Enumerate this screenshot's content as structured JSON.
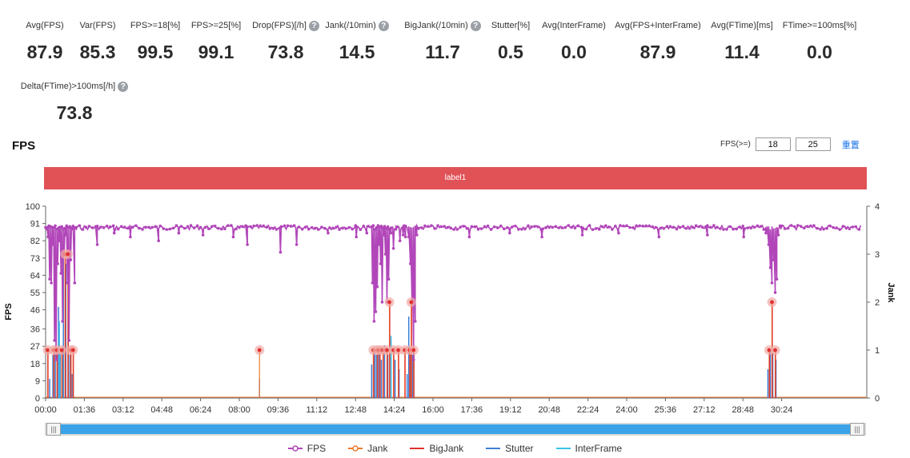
{
  "stats": [
    {
      "label": "Avg(FPS)",
      "value": "87.9",
      "help": false
    },
    {
      "label": "Var(FPS)",
      "value": "85.3",
      "help": false
    },
    {
      "label": "FPS>=18[%]",
      "value": "99.5",
      "help": false
    },
    {
      "label": "FPS>=25[%]",
      "value": "99.1",
      "help": false
    },
    {
      "label": "Drop(FPS)[/h]",
      "value": "73.8",
      "help": true
    },
    {
      "label": "Jank(/10min)",
      "value": "14.5",
      "help": true
    },
    {
      "label": "BigJank(/10min)",
      "value": "11.7",
      "help": true
    },
    {
      "label": "Stutter[%]",
      "value": "0.5",
      "help": false
    },
    {
      "label": "Avg(InterFrame)",
      "value": "0.0",
      "help": false
    },
    {
      "label": "Avg(FPS+InterFrame)",
      "value": "87.9",
      "help": false
    },
    {
      "label": "Avg(FTime)[ms]",
      "value": "11.4",
      "help": false
    },
    {
      "label": "FTime>=100ms[%]",
      "value": "0.0",
      "help": false
    },
    {
      "label": "Delta(FTime)>100ms[/h]",
      "value": "73.8",
      "help": true
    }
  ],
  "help_glyph": "?",
  "section_title": "FPS",
  "fps_filter": {
    "label": "FPS(>=)",
    "low": "18",
    "high": "25",
    "reset": "重置"
  },
  "label_bar": "label1",
  "slider": {
    "left_glyph": "|||",
    "right_glyph": "|||",
    "start": 0.0,
    "end": 1.0
  },
  "colors": {
    "fps": "#b146b9",
    "jank": "#f07a2e",
    "bigjank": "#e0302f",
    "stutter": "#3e7fd6",
    "interframe": "#36c3e8",
    "label_bar": "#e05256",
    "halo": "#f1a9a4"
  },
  "legend": [
    {
      "name": "FPS",
      "key": "fps",
      "marker": "dot-line"
    },
    {
      "name": "Jank",
      "key": "jank",
      "marker": "dot-line"
    },
    {
      "name": "BigJank",
      "key": "bigjank",
      "marker": "line"
    },
    {
      "name": "Stutter",
      "key": "stutter",
      "marker": "line"
    },
    {
      "name": "InterFrame",
      "key": "interframe",
      "marker": "line"
    }
  ],
  "chart_data": {
    "type": "line",
    "title": "FPS",
    "xlabel": "",
    "ylabel": "FPS",
    "y2label": "Jank",
    "x_unit": "minutes",
    "xlim": [
      0,
      2035
    ],
    "ylim": [
      0,
      100
    ],
    "y2lim": [
      0,
      4
    ],
    "y_ticks": [
      0,
      9,
      18,
      27,
      36,
      46,
      55,
      64,
      73,
      82,
      91,
      100
    ],
    "y2_ticks": [
      0,
      1,
      2,
      3,
      4
    ],
    "x_tick_values": [
      0,
      96,
      192,
      288,
      384,
      480,
      576,
      672,
      768,
      864,
      960,
      1056,
      1152,
      1248,
      1344,
      1440,
      1536,
      1632,
      1728,
      1824
    ],
    "x_tick_labels": [
      "00:00",
      "01:36",
      "03:12",
      "04:48",
      "06:24",
      "08:00",
      "09:36",
      "11:12",
      "12:48",
      "14:24",
      "16:00",
      "17:36",
      "19:12",
      "20:48",
      "22:24",
      "24:00",
      "25:36",
      "27:12",
      "28:48",
      "30:24"
    ],
    "fps_baseline": 90,
    "series": [
      {
        "name": "FPS",
        "key": "fps",
        "axis": "left",
        "description": "steady near 90 with dropouts",
        "dips": [
          {
            "x": 2,
            "y": 88
          },
          {
            "x": 6,
            "y": 84
          },
          {
            "x": 10,
            "y": 62
          },
          {
            "x": 14,
            "y": 60
          },
          {
            "x": 18,
            "y": 80
          },
          {
            "x": 22,
            "y": 30
          },
          {
            "x": 26,
            "y": 20
          },
          {
            "x": 30,
            "y": 70
          },
          {
            "x": 34,
            "y": 82
          },
          {
            "x": 38,
            "y": 65
          },
          {
            "x": 42,
            "y": 40
          },
          {
            "x": 46,
            "y": 75
          },
          {
            "x": 50,
            "y": 85
          },
          {
            "x": 54,
            "y": 60
          },
          {
            "x": 58,
            "y": 30
          },
          {
            "x": 62,
            "y": 72
          },
          {
            "x": 66,
            "y": 88
          },
          {
            "x": 72,
            "y": 60
          },
          {
            "x": 76,
            "y": 88
          },
          {
            "x": 128,
            "y": 80
          },
          {
            "x": 170,
            "y": 86
          },
          {
            "x": 210,
            "y": 84
          },
          {
            "x": 280,
            "y": 82
          },
          {
            "x": 330,
            "y": 86
          },
          {
            "x": 390,
            "y": 85
          },
          {
            "x": 465,
            "y": 84
          },
          {
            "x": 500,
            "y": 80
          },
          {
            "x": 582,
            "y": 76
          },
          {
            "x": 622,
            "y": 80
          },
          {
            "x": 700,
            "y": 86
          },
          {
            "x": 770,
            "y": 84
          },
          {
            "x": 796,
            "y": 86
          },
          {
            "x": 810,
            "y": 60
          },
          {
            "x": 814,
            "y": 40
          },
          {
            "x": 818,
            "y": 45
          },
          {
            "x": 822,
            "y": 58
          },
          {
            "x": 826,
            "y": 80
          },
          {
            "x": 830,
            "y": 70
          },
          {
            "x": 834,
            "y": 50
          },
          {
            "x": 838,
            "y": 85
          },
          {
            "x": 842,
            "y": 75
          },
          {
            "x": 846,
            "y": 50
          },
          {
            "x": 850,
            "y": 62
          },
          {
            "x": 856,
            "y": 86
          },
          {
            "x": 862,
            "y": 78
          },
          {
            "x": 868,
            "y": 88
          },
          {
            "x": 878,
            "y": 82
          },
          {
            "x": 886,
            "y": 85
          },
          {
            "x": 892,
            "y": 84
          },
          {
            "x": 900,
            "y": 84
          },
          {
            "x": 904,
            "y": 70
          },
          {
            "x": 908,
            "y": 50
          },
          {
            "x": 912,
            "y": 20
          },
          {
            "x": 916,
            "y": 40
          },
          {
            "x": 920,
            "y": 85
          },
          {
            "x": 1050,
            "y": 84
          },
          {
            "x": 1150,
            "y": 86
          },
          {
            "x": 1230,
            "y": 84
          },
          {
            "x": 1330,
            "y": 85
          },
          {
            "x": 1420,
            "y": 86
          },
          {
            "x": 1520,
            "y": 84
          },
          {
            "x": 1640,
            "y": 85
          },
          {
            "x": 1730,
            "y": 84
          },
          {
            "x": 1785,
            "y": 86
          },
          {
            "x": 1792,
            "y": 80
          },
          {
            "x": 1796,
            "y": 68
          },
          {
            "x": 1800,
            "y": 60
          },
          {
            "x": 1804,
            "y": 72
          },
          {
            "x": 1808,
            "y": 55
          },
          {
            "x": 1812,
            "y": 62
          },
          {
            "x": 1816,
            "y": 85
          },
          {
            "x": 1822,
            "y": 88
          }
        ]
      },
      {
        "name": "Jank",
        "key": "jank",
        "axis": "right",
        "points": [
          {
            "x": 5,
            "y": 1
          },
          {
            "x": 20,
            "y": 1
          },
          {
            "x": 28,
            "y": 1
          },
          {
            "x": 40,
            "y": 1
          },
          {
            "x": 48,
            "y": 3
          },
          {
            "x": 55,
            "y": 3
          },
          {
            "x": 62,
            "y": 1
          },
          {
            "x": 68,
            "y": 1
          },
          {
            "x": 530,
            "y": 1
          },
          {
            "x": 812,
            "y": 1
          },
          {
            "x": 822,
            "y": 1
          },
          {
            "x": 828,
            "y": 1
          },
          {
            "x": 836,
            "y": 1
          },
          {
            "x": 846,
            "y": 1
          },
          {
            "x": 852,
            "y": 2
          },
          {
            "x": 862,
            "y": 1
          },
          {
            "x": 874,
            "y": 1
          },
          {
            "x": 890,
            "y": 1
          },
          {
            "x": 902,
            "y": 1
          },
          {
            "x": 906,
            "y": 2
          },
          {
            "x": 912,
            "y": 1
          },
          {
            "x": 1793,
            "y": 1
          },
          {
            "x": 1800,
            "y": 2
          },
          {
            "x": 1808,
            "y": 1
          }
        ]
      },
      {
        "name": "BigJank",
        "key": "bigjank",
        "axis": "right",
        "points": [
          {
            "x": 5,
            "y": 1
          },
          {
            "x": 20,
            "y": 1
          },
          {
            "x": 28,
            "y": 1
          },
          {
            "x": 40,
            "y": 1
          },
          {
            "x": 48,
            "y": 3
          },
          {
            "x": 55,
            "y": 3
          },
          {
            "x": 62,
            "y": 1
          },
          {
            "x": 68,
            "y": 1
          },
          {
            "x": 812,
            "y": 1
          },
          {
            "x": 822,
            "y": 1
          },
          {
            "x": 828,
            "y": 1
          },
          {
            "x": 836,
            "y": 1
          },
          {
            "x": 846,
            "y": 1
          },
          {
            "x": 852,
            "y": 2
          },
          {
            "x": 862,
            "y": 1
          },
          {
            "x": 874,
            "y": 1
          },
          {
            "x": 890,
            "y": 1
          },
          {
            "x": 902,
            "y": 1
          },
          {
            "x": 906,
            "y": 2
          },
          {
            "x": 912,
            "y": 1
          },
          {
            "x": 1793,
            "y": 1
          },
          {
            "x": 1800,
            "y": 2
          },
          {
            "x": 1808,
            "y": 1
          }
        ]
      },
      {
        "name": "Stutter",
        "key": "stutter",
        "axis": "right",
        "points": [
          {
            "x": 10,
            "y": 0.4
          },
          {
            "x": 18,
            "y": 0.9
          },
          {
            "x": 24,
            "y": 1.1
          },
          {
            "x": 32,
            "y": 1.9
          },
          {
            "x": 36,
            "y": 1.0
          },
          {
            "x": 44,
            "y": 3.0
          },
          {
            "x": 50,
            "y": 2.8
          },
          {
            "x": 56,
            "y": 1.8
          },
          {
            "x": 60,
            "y": 0.9
          },
          {
            "x": 66,
            "y": 0.5
          },
          {
            "x": 530,
            "y": 0.4
          },
          {
            "x": 808,
            "y": 0.7
          },
          {
            "x": 816,
            "y": 1.0
          },
          {
            "x": 820,
            "y": 0.9
          },
          {
            "x": 826,
            "y": 1.0
          },
          {
            "x": 832,
            "y": 0.8
          },
          {
            "x": 840,
            "y": 1.1
          },
          {
            "x": 848,
            "y": 0.9
          },
          {
            "x": 856,
            "y": 1.2
          },
          {
            "x": 866,
            "y": 0.8
          },
          {
            "x": 876,
            "y": 0.6
          },
          {
            "x": 896,
            "y": 0.5
          },
          {
            "x": 900,
            "y": 1.7
          },
          {
            "x": 904,
            "y": 1.0
          },
          {
            "x": 910,
            "y": 0.9
          },
          {
            "x": 1790,
            "y": 0.6
          },
          {
            "x": 1796,
            "y": 1.0
          },
          {
            "x": 1802,
            "y": 1.0
          },
          {
            "x": 1810,
            "y": 0.8
          }
        ]
      },
      {
        "name": "InterFrame",
        "key": "interframe",
        "axis": "right",
        "points": [
          {
            "x": 34,
            "y": 1.6
          },
          {
            "x": 42,
            "y": 0.8
          },
          {
            "x": 856,
            "y": 1.3
          }
        ]
      }
    ],
    "legend_position": "bottom-center"
  }
}
